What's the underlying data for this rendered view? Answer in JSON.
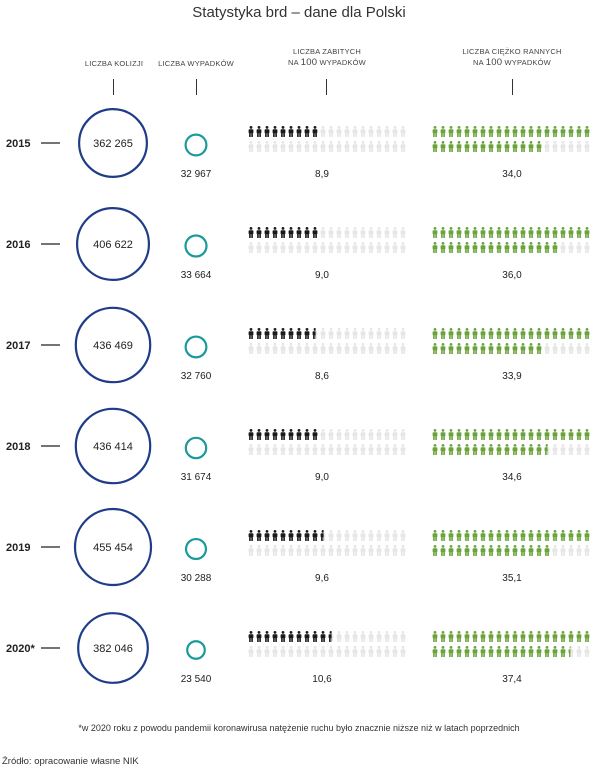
{
  "title": "Statystyka brd – dane dla Polski",
  "headers": {
    "kolizje": "LICZBA KOLIZJI",
    "wypadki": "LICZBA WYPADKÓW",
    "zabici_line1": "LICZBA ZABITYCH",
    "zabici_line2_num": "100",
    "zabici_line2_pre": "NA ",
    "zabici_line2_post": " WYPADKÓW",
    "ranni_line1": "LICZBA CIĘŻKO RANNYCH",
    "ranni_line2_pre": "NA ",
    "ranni_line2_num": "100",
    "ranni_line2_post": " WYPADKÓW"
  },
  "colors": {
    "kolizje": "#1f3c88",
    "wypadki": "#1a9a9a",
    "zabici": "#1a1a1a",
    "ranni": "#6aa33a",
    "empty": "#e6e6e6"
  },
  "chart_data": {
    "type": "table",
    "icons_per_row": 20,
    "rows": [
      {
        "year": "2015",
        "kolizje": 362265,
        "kolizje_label": "362 265",
        "wypadki": 32967,
        "wypadki_label": "32 967",
        "zabici": 8.9,
        "zabici_label": "8,9",
        "ranni": 34.0,
        "ranni_label": "34,0"
      },
      {
        "year": "2016",
        "kolizje": 406622,
        "kolizje_label": "406 622",
        "wypadki": 33664,
        "wypadki_label": "33 664",
        "zabici": 9.0,
        "zabici_label": "9,0",
        "ranni": 36.0,
        "ranni_label": "36,0"
      },
      {
        "year": "2017",
        "kolizje": 436469,
        "kolizje_label": "436 469",
        "wypadki": 32760,
        "wypadki_label": "32 760",
        "zabici": 8.6,
        "zabici_label": "8,6",
        "ranni": 33.9,
        "ranni_label": "33,9"
      },
      {
        "year": "2018",
        "kolizje": 436414,
        "kolizje_label": "436 414",
        "wypadki": 31674,
        "wypadki_label": "31 674",
        "zabici": 9.0,
        "zabici_label": "9,0",
        "ranni": 34.6,
        "ranni_label": "34,6"
      },
      {
        "year": "2019",
        "kolizje": 455454,
        "kolizje_label": "455 454",
        "wypadki": 30288,
        "wypadki_label": "30 288",
        "zabici": 9.6,
        "zabici_label": "9,6",
        "ranni": 35.1,
        "ranni_label": "35,1"
      },
      {
        "year": "2020*",
        "kolizje": 382046,
        "kolizje_label": "382 046",
        "wypadki": 23540,
        "wypadki_label": "23 540",
        "zabici": 10.6,
        "zabici_label": "10,6",
        "ranni": 37.4,
        "ranni_label": "37,4"
      }
    ]
  },
  "note": "*w 2020 roku z powodu pandemii koronawirusa natężenie ruchu było znacznie niższe niż w latach poprzednich",
  "source": "Źródło: opracowanie własne NIK"
}
